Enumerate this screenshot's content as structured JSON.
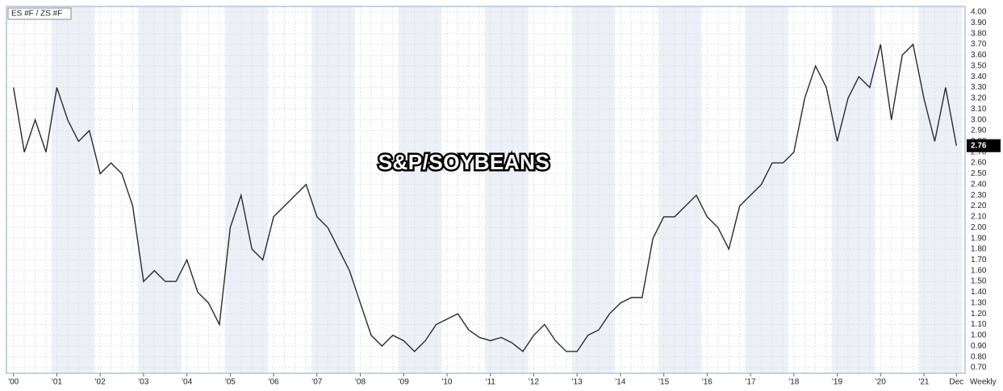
{
  "chart_data": {
    "type": "line",
    "title": "S&P/SOYBEANS",
    "legend_label": "ES #F / ZS #F",
    "period": "Weekly",
    "categories": [
      "'00",
      null,
      null,
      null,
      "'01",
      null,
      null,
      null,
      "'02",
      null,
      null,
      null,
      "'03",
      null,
      null,
      null,
      "'04",
      null,
      null,
      null,
      "'05",
      null,
      null,
      null,
      "'06",
      null,
      null,
      null,
      "'07",
      null,
      null,
      null,
      "'08",
      null,
      null,
      null,
      "'09",
      null,
      null,
      null,
      "'10",
      null,
      null,
      null,
      "'11",
      null,
      null,
      null,
      "'12",
      null,
      null,
      null,
      "'13",
      null,
      null,
      null,
      "'14",
      null,
      null,
      null,
      "'15",
      null,
      null,
      null,
      "'16",
      null,
      null,
      null,
      "'17",
      null,
      null,
      null,
      "'18",
      null,
      null,
      null,
      "'19",
      null,
      null,
      null,
      "'20",
      null,
      null,
      null,
      "'21",
      null,
      null,
      "Dec"
    ],
    "series": [
      {
        "name": "ES #F / ZS #F",
        "color": "#2b2b2b",
        "values": [
          3.3,
          2.7,
          3.0,
          2.7,
          3.3,
          3.0,
          2.8,
          2.9,
          2.5,
          2.6,
          2.5,
          2.2,
          1.5,
          1.6,
          1.5,
          1.5,
          1.7,
          1.4,
          1.3,
          1.1,
          2.0,
          2.3,
          1.8,
          1.7,
          2.1,
          2.2,
          2.3,
          2.4,
          2.1,
          2.0,
          1.8,
          1.6,
          1.3,
          1.0,
          0.9,
          1.0,
          0.95,
          0.85,
          0.95,
          1.1,
          1.15,
          1.2,
          1.05,
          0.98,
          0.95,
          0.98,
          0.93,
          0.85,
          1.0,
          1.1,
          0.95,
          0.85,
          0.85,
          1.0,
          1.05,
          1.2,
          1.3,
          1.35,
          1.35,
          1.9,
          2.1,
          2.1,
          2.2,
          2.3,
          2.1,
          2.0,
          1.8,
          2.2,
          2.3,
          2.4,
          2.6,
          2.6,
          2.7,
          3.2,
          3.5,
          3.3,
          2.8,
          3.2,
          3.4,
          3.3,
          3.7,
          3.0,
          3.6,
          3.7,
          3.2,
          2.8,
          3.3,
          2.76
        ]
      }
    ],
    "ylim": [
      0.7,
      4.0
    ],
    "yticks": [
      {
        "value": 0.7,
        "label": "0.70"
      },
      {
        "value": 0.8,
        "label": "0.80"
      },
      {
        "value": 0.9,
        "label": "0.90"
      },
      {
        "value": 1.0,
        "label": "1.00"
      },
      {
        "value": 1.1,
        "label": "1.10"
      },
      {
        "value": 1.2,
        "label": "1.20"
      },
      {
        "value": 1.3,
        "label": "1.30"
      },
      {
        "value": 1.4,
        "label": "1.40"
      },
      {
        "value": 1.5,
        "label": "1.50"
      },
      {
        "value": 1.6,
        "label": "1.60"
      },
      {
        "value": 1.7,
        "label": "1.70"
      },
      {
        "value": 1.8,
        "label": "1.80"
      },
      {
        "value": 1.9,
        "label": "1.90"
      },
      {
        "value": 2.0,
        "label": "2.00"
      },
      {
        "value": 2.1,
        "label": "2.10"
      },
      {
        "value": 2.2,
        "label": "2.20"
      },
      {
        "value": 2.3,
        "label": "2.30"
      },
      {
        "value": 2.4,
        "label": "2.40"
      },
      {
        "value": 2.5,
        "label": "2.50"
      },
      {
        "value": 2.6,
        "label": "2.60"
      },
      {
        "value": 2.7,
        "label": "2.70"
      },
      {
        "value": 2.8,
        "label": "2.80"
      },
      {
        "value": 2.9,
        "label": "2.90"
      },
      {
        "value": 3.0,
        "label": "3.00"
      },
      {
        "value": 3.1,
        "label": "3.10"
      },
      {
        "value": 3.2,
        "label": "3.20"
      },
      {
        "value": 3.3,
        "label": "3.30"
      },
      {
        "value": 3.4,
        "label": "3.40"
      },
      {
        "value": 3.5,
        "label": "3.50"
      },
      {
        "value": 3.6,
        "label": "3.60"
      },
      {
        "value": 3.7,
        "label": "3.70"
      },
      {
        "value": 3.8,
        "label": "3.80"
      },
      {
        "value": 3.9,
        "label": "3.90"
      },
      {
        "value": 4.0,
        "label": "4.00"
      }
    ],
    "grid": true
  }
}
